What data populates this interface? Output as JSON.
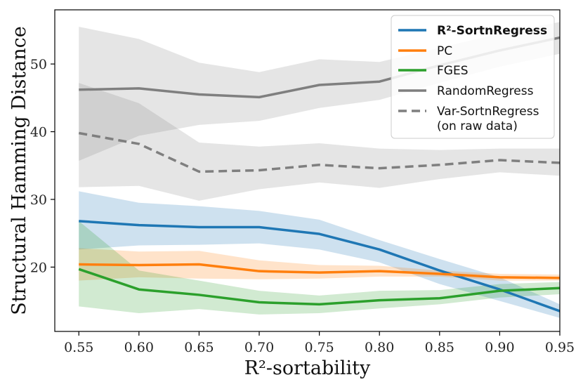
{
  "chart_data": {
    "type": "line",
    "title": "",
    "xlabel": "R²-sortability",
    "ylabel": "Structural Hamming Distance",
    "xlim": [
      0.53,
      0.95
    ],
    "ylim": [
      10.5,
      58
    ],
    "x": [
      0.55,
      0.6,
      0.65,
      0.7,
      0.75,
      0.8,
      0.85,
      0.9,
      0.95
    ],
    "xticks": [
      "0.55",
      "0.60",
      "0.65",
      "0.70",
      "0.75",
      "0.80",
      "0.85",
      "0.90",
      "0.95"
    ],
    "yticks": [
      "20",
      "30",
      "40",
      "50"
    ],
    "ytick_values": [
      20,
      30,
      40,
      50
    ],
    "legend_position": "top-right",
    "series": [
      {
        "name": "R²-SortnRegress",
        "color": "#1f77b4",
        "dash": "solid",
        "values": [
          26.8,
          26.2,
          25.9,
          25.9,
          24.9,
          22.6,
          19.5,
          16.7,
          13.5
        ],
        "lower": [
          22.6,
          23.2,
          23.3,
          23.5,
          22.6,
          20.7,
          17.5,
          15.0,
          12.5
        ],
        "upper": [
          31.2,
          29.5,
          29.0,
          28.3,
          27.0,
          24.0,
          21.2,
          18.5,
          14.5
        ]
      },
      {
        "name": "PC",
        "color": "#ff7f0e",
        "dash": "solid",
        "values": [
          20.4,
          20.3,
          20.4,
          19.4,
          19.2,
          19.4,
          19.0,
          18.5,
          18.4
        ],
        "lower": [
          18.0,
          18.5,
          18.3,
          18.2,
          18.3,
          18.6,
          18.6,
          18.0,
          18.0
        ],
        "upper": [
          22.8,
          22.3,
          22.4,
          21.0,
          20.3,
          20.2,
          19.5,
          19.0,
          18.9
        ]
      },
      {
        "name": "FGES",
        "color": "#2ca02c",
        "dash": "solid",
        "values": [
          19.7,
          16.7,
          15.9,
          14.8,
          14.5,
          15.1,
          15.4,
          16.5,
          16.9
        ],
        "lower": [
          14.2,
          13.2,
          13.8,
          13.0,
          13.2,
          13.9,
          14.5,
          15.5,
          16.0
        ],
        "upper": [
          26.8,
          19.5,
          18.0,
          16.5,
          15.8,
          16.5,
          16.6,
          17.5,
          17.8
        ]
      },
      {
        "name": "RandomRegress",
        "color": "#7f7f7f",
        "dash": "solid",
        "values": [
          46.2,
          46.4,
          45.5,
          45.1,
          46.9,
          47.4,
          49.8,
          52.0,
          53.9
        ],
        "lower": [
          35.7,
          39.4,
          41.0,
          41.6,
          43.5,
          44.7,
          47.2,
          49.6,
          51.5
        ],
        "upper": [
          55.5,
          53.7,
          50.2,
          48.8,
          50.7,
          50.3,
          52.4,
          54.5,
          56.2
        ]
      },
      {
        "name": "Var-SortnRegress\n(on raw data)",
        "color": "#7f7f7f",
        "dash": "dashed",
        "values": [
          39.8,
          38.2,
          34.1,
          34.3,
          35.1,
          34.6,
          35.1,
          35.8,
          35.4
        ],
        "lower": [
          31.8,
          32.0,
          29.8,
          31.5,
          32.5,
          31.7,
          33.0,
          34.0,
          33.5
        ],
        "upper": [
          47.2,
          44.2,
          38.4,
          37.8,
          38.3,
          37.5,
          37.3,
          37.5,
          37.5
        ]
      }
    ]
  }
}
